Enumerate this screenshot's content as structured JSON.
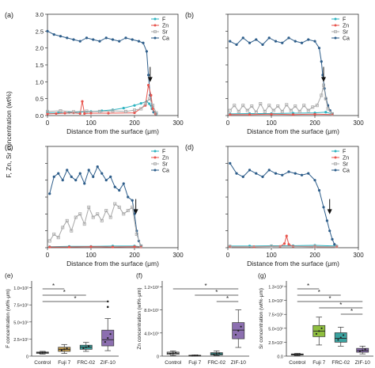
{
  "shared": {
    "ylabel_top": "F, Zn, Sr concentration (wt%)",
    "xlabel_profile": "Distance from the surface (μm)",
    "legend_labels": [
      "F",
      "Zn",
      "Sr",
      "Ca"
    ],
    "colors": {
      "F": "#2bb3c0",
      "Zn": "#e8554e",
      "Sr": "#a8a8a8",
      "Ca": "#2d5d8a"
    }
  },
  "chart_data": [
    {
      "panel": "(a)",
      "type": "line",
      "xlim": [
        0,
        300
      ],
      "ylim": [
        0,
        3.0
      ],
      "xticks": [
        0,
        100,
        200,
        300
      ],
      "yticks": [
        0.0,
        0.5,
        1.0,
        1.5,
        2.0,
        2.5,
        3.0
      ],
      "xtick_labels": [
        "0",
        "100",
        "200",
        "300"
      ],
      "ytick_labels": [
        "0.0",
        "0.5",
        "1.0",
        "1.5",
        "2.0",
        "2.5",
        "3.0"
      ],
      "xlabel": "Distance from the surface (μm)",
      "legend": "top-right",
      "series": [
        {
          "name": "Ca",
          "x": [
            0,
            15,
            30,
            45,
            60,
            75,
            90,
            105,
            120,
            135,
            150,
            165,
            180,
            195,
            210,
            220,
            228,
            232,
            236,
            240,
            244,
            250
          ],
          "y": [
            2.5,
            2.4,
            2.35,
            2.3,
            2.25,
            2.2,
            2.3,
            2.25,
            2.2,
            2.3,
            2.25,
            2.2,
            2.3,
            2.25,
            2.2,
            2.15,
            1.9,
            1.2,
            0.6,
            0.3,
            0.1,
            0.05
          ]
        },
        {
          "name": "F",
          "x": [
            0,
            25,
            50,
            75,
            100,
            125,
            150,
            175,
            200,
            215,
            228,
            234,
            240,
            246,
            250
          ],
          "y": [
            0.08,
            0.08,
            0.09,
            0.1,
            0.12,
            0.14,
            0.17,
            0.22,
            0.3,
            0.36,
            0.42,
            0.35,
            0.2,
            0.1,
            0.05
          ]
        },
        {
          "name": "Zn",
          "x": [
            0,
            20,
            40,
            60,
            75,
            80,
            85,
            100,
            140,
            200,
            225,
            232,
            238,
            242,
            248
          ],
          "y": [
            0.05,
            0.06,
            0.07,
            0.08,
            0.06,
            0.42,
            0.06,
            0.07,
            0.07,
            0.08,
            0.3,
            0.9,
            0.6,
            0.2,
            0.05
          ]
        },
        {
          "name": "Sr",
          "x": [
            0,
            30,
            60,
            90,
            120,
            150,
            180,
            200,
            215,
            225,
            235,
            242,
            250
          ],
          "y": [
            0.12,
            0.14,
            0.11,
            0.13,
            0.12,
            0.14,
            0.12,
            0.16,
            0.2,
            0.35,
            0.5,
            0.3,
            0.08
          ]
        }
      ],
      "arrow_x": 236
    },
    {
      "panel": "(b)",
      "type": "line",
      "xlim": [
        0,
        300
      ],
      "ylim": [
        0,
        3.0
      ],
      "xticks": [
        0,
        100,
        200,
        300
      ],
      "xtick_labels": [
        "0",
        "100",
        "200",
        "300"
      ],
      "xlabel": "Distance from the surface (μm)",
      "legend": "top-right",
      "series": [
        {
          "name": "Ca",
          "x": [
            5,
            20,
            35,
            50,
            65,
            80,
            95,
            110,
            125,
            140,
            155,
            170,
            185,
            200,
            210,
            215,
            218,
            222,
            226,
            230,
            235,
            240
          ],
          "y": [
            2.2,
            2.1,
            2.3,
            2.15,
            2.25,
            2.1,
            2.3,
            2.2,
            2.15,
            2.3,
            2.2,
            2.15,
            2.25,
            2.2,
            2.0,
            1.6,
            1.2,
            0.8,
            0.5,
            0.3,
            0.15,
            0.05
          ]
        },
        {
          "name": "F",
          "x": [
            5,
            50,
            100,
            150,
            200,
            225,
            240
          ],
          "y": [
            0.05,
            0.06,
            0.06,
            0.07,
            0.08,
            0.1,
            0.05
          ]
        },
        {
          "name": "Zn",
          "x": [
            5,
            50,
            100,
            150,
            200,
            240
          ],
          "y": [
            0.03,
            0.03,
            0.04,
            0.03,
            0.04,
            0.03
          ]
        },
        {
          "name": "Sr",
          "x": [
            5,
            15,
            25,
            35,
            45,
            55,
            65,
            75,
            85,
            95,
            105,
            115,
            125,
            135,
            145,
            155,
            165,
            175,
            185,
            195,
            205,
            215,
            220,
            225,
            230,
            240
          ],
          "y": [
            0.15,
            0.3,
            0.12,
            0.3,
            0.15,
            0.28,
            0.1,
            0.35,
            0.12,
            0.3,
            0.15,
            0.28,
            0.12,
            0.32,
            0.15,
            0.28,
            0.12,
            0.3,
            0.15,
            0.25,
            0.3,
            0.6,
            0.9,
            0.5,
            0.2,
            0.05
          ]
        }
      ],
      "arrow_x": 220
    },
    {
      "panel": "(c)",
      "type": "line",
      "xlim": [
        0,
        300
      ],
      "ylim": [
        0,
        3.0
      ],
      "xticks": [
        0,
        100,
        200,
        300
      ],
      "xtick_labels": [
        "0",
        "100",
        "200",
        "300"
      ],
      "xlabel": "Distance from the surface (μm)",
      "legend": "top-right",
      "series": [
        {
          "name": "Ca",
          "x": [
            5,
            15,
            25,
            35,
            45,
            55,
            65,
            75,
            85,
            95,
            105,
            115,
            125,
            135,
            145,
            155,
            165,
            175,
            185,
            195,
            200,
            205,
            210,
            215
          ],
          "y": [
            1.6,
            2.1,
            2.2,
            2.0,
            2.3,
            2.1,
            2.0,
            2.2,
            1.9,
            2.3,
            2.1,
            2.4,
            2.2,
            2.0,
            2.1,
            1.8,
            1.7,
            1.9,
            1.5,
            1.4,
            1.0,
            0.5,
            0.2,
            0.05
          ]
        },
        {
          "name": "F",
          "x": [
            5,
            50,
            100,
            150,
            200,
            215
          ],
          "y": [
            0.03,
            0.04,
            0.04,
            0.05,
            0.05,
            0.03
          ]
        },
        {
          "name": "Zn",
          "x": [
            5,
            50,
            100,
            150,
            200,
            215
          ],
          "y": [
            0.02,
            0.02,
            0.03,
            0.02,
            0.03,
            0.02
          ]
        },
        {
          "name": "Sr",
          "x": [
            5,
            15,
            25,
            35,
            45,
            55,
            65,
            75,
            85,
            95,
            105,
            115,
            125,
            135,
            145,
            155,
            165,
            175,
            185,
            195,
            205,
            215
          ],
          "y": [
            0.2,
            0.4,
            0.3,
            0.6,
            0.8,
            0.5,
            0.9,
            1.0,
            0.7,
            1.2,
            0.9,
            1.0,
            0.8,
            1.1,
            0.9,
            1.3,
            1.2,
            1.0,
            1.1,
            1.2,
            0.4,
            0.05
          ]
        }
      ],
      "arrow_x": 203
    },
    {
      "panel": "(d)",
      "type": "line",
      "xlim": [
        0,
        300
      ],
      "ylim": [
        0,
        3.0
      ],
      "xticks": [
        0,
        100,
        200,
        300
      ],
      "xtick_labels": [
        "0",
        "100",
        "200",
        "300"
      ],
      "xlabel": "Distance from the surface (μm)",
      "legend": "top-right",
      "series": [
        {
          "name": "Ca",
          "x": [
            5,
            20,
            35,
            50,
            65,
            80,
            95,
            110,
            125,
            140,
            155,
            170,
            185,
            200,
            210,
            220,
            228,
            234,
            240,
            245,
            250
          ],
          "y": [
            2.5,
            2.2,
            2.1,
            2.3,
            2.2,
            2.1,
            2.3,
            2.2,
            2.15,
            2.25,
            2.2,
            2.15,
            2.2,
            2.0,
            1.7,
            1.2,
            0.8,
            0.5,
            0.25,
            0.1,
            0.05
          ]
        },
        {
          "name": "F",
          "x": [
            5,
            50,
            100,
            150,
            200,
            250
          ],
          "y": [
            0.05,
            0.05,
            0.06,
            0.06,
            0.07,
            0.05
          ]
        },
        {
          "name": "Zn",
          "x": [
            5,
            60,
            120,
            130,
            135,
            140,
            150,
            200,
            250
          ],
          "y": [
            0.03,
            0.03,
            0.04,
            0.12,
            0.35,
            0.1,
            0.04,
            0.03,
            0.03
          ]
        },
        {
          "name": "Sr",
          "x": [
            5,
            100,
            200,
            250
          ],
          "y": [
            0.03,
            0.04,
            0.04,
            0.03
          ]
        }
      ],
      "arrow_x": 234
    },
    {
      "panel": "(e)",
      "type": "box",
      "ylabel": "F concentration (wt%·μm)",
      "ytick_labels": [
        "0",
        "2.5×10¹",
        "5.0×10¹",
        "7.5×10¹",
        "1.0×10²"
      ],
      "yticks": [
        0,
        25,
        50,
        75,
        100
      ],
      "ylim": [
        0,
        110
      ],
      "categories": [
        "Control",
        "Fuji 7",
        "FRC-02",
        "ZIF-10"
      ],
      "box_colors": [
        "#cfcfcf",
        "#c8a050",
        "#3aa3a0",
        "#8c6fb0"
      ],
      "boxes": [
        {
          "q1": 4,
          "median": 5,
          "q3": 6,
          "min": 3,
          "max": 7
        },
        {
          "q1": 7,
          "median": 10,
          "q3": 13,
          "min": 4,
          "max": 17
        },
        {
          "q1": 10,
          "median": 13,
          "q3": 16,
          "min": 7,
          "max": 20
        },
        {
          "q1": 15,
          "median": 24,
          "q3": 38,
          "min": 8,
          "max": 55
        }
      ],
      "outliers": [
        [
          3,
          80
        ],
        [
          3,
          72
        ]
      ],
      "significance": [
        [
          0,
          1
        ],
        [
          0,
          2
        ],
        [
          0,
          3
        ]
      ]
    },
    {
      "panel": "(f)",
      "type": "box",
      "ylabel": "Zn concentration (wt%·μm)",
      "ytick_labels": [
        "0",
        "4.0×10¹",
        "8.0×10¹",
        "1.2×10²"
      ],
      "yticks": [
        0,
        40,
        80,
        120
      ],
      "ylim": [
        0,
        130
      ],
      "categories": [
        "Control",
        "Fuji 7",
        "FRC-02",
        "ZIF-10"
      ],
      "box_colors": [
        "#cfcfcf",
        "#c8a050",
        "#3aa3a0",
        "#8c6fb0"
      ],
      "boxes": [
        {
          "q1": 3,
          "median": 5,
          "q3": 7,
          "min": 1,
          "max": 9
        },
        {
          "q1": 0.5,
          "median": 1,
          "q3": 1.5,
          "min": 0,
          "max": 2
        },
        {
          "q1": 2,
          "median": 4,
          "q3": 6,
          "min": 1,
          "max": 9
        },
        {
          "q1": 30,
          "median": 45,
          "q3": 58,
          "min": 15,
          "max": 80
        }
      ],
      "outliers": [],
      "significance": [
        [
          0,
          3
        ],
        [
          1,
          3
        ],
        [
          2,
          3
        ]
      ]
    },
    {
      "panel": "(g)",
      "type": "box",
      "ylabel": "Sr concentration (wt%·μm)",
      "ytick_labels": [
        "0.0",
        "2.5×10¹",
        "5.0×10¹",
        "7.5×10¹",
        "1.0×10²",
        "1.3×10²"
      ],
      "yticks": [
        0,
        25,
        50,
        75,
        100,
        125
      ],
      "ylim": [
        0,
        135
      ],
      "categories": [
        "Control",
        "Fuji 7",
        "FRC-02",
        "ZIF-10"
      ],
      "box_colors": [
        "#cfcfcf",
        "#8fbf3f",
        "#3aa3a0",
        "#8c6fb0"
      ],
      "boxes": [
        {
          "q1": 2,
          "median": 3,
          "q3": 4,
          "min": 1,
          "max": 5
        },
        {
          "q1": 35,
          "median": 45,
          "q3": 55,
          "min": 20,
          "max": 70
        },
        {
          "q1": 25,
          "median": 32,
          "q3": 42,
          "min": 18,
          "max": 52
        },
        {
          "q1": 7,
          "median": 10,
          "q3": 14,
          "min": 4,
          "max": 18
        }
      ],
      "outliers": [],
      "significance": [
        [
          0,
          1
        ],
        [
          0,
          2
        ],
        [
          0,
          3
        ],
        [
          1,
          3
        ],
        [
          2,
          3
        ]
      ]
    }
  ]
}
